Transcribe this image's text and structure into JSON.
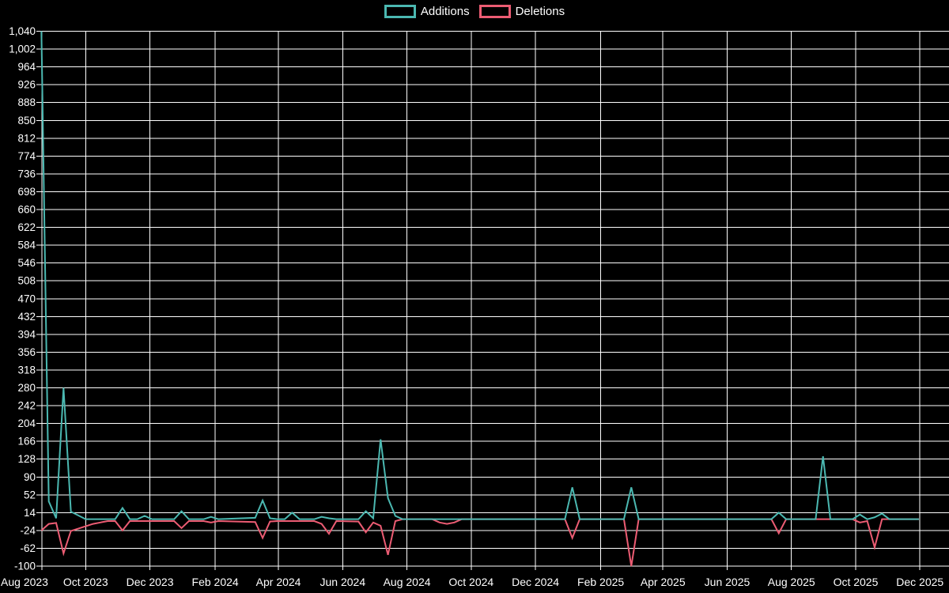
{
  "page": {
    "background_color": "#000000",
    "text_color": "#ffffff",
    "grid_color": "#ffffff"
  },
  "chart_data": {
    "type": "line",
    "title": "",
    "legend_position": "top-center",
    "grid": true,
    "background": "#000000",
    "x_axis": {
      "tick_labels": [
        "Aug 2023",
        "Oct 2023",
        "Dec 2023",
        "Feb 2024",
        "Apr 2024",
        "Jun 2024",
        "Aug 2024",
        "Oct 2024",
        "Dec 2024",
        "Feb 2025",
        "Apr 2025",
        "Jun 2025",
        "Aug 2025",
        "Oct 2025",
        "Dec 2025"
      ]
    },
    "y_axis": {
      "min": -100,
      "max": 1040,
      "tick_step": 38,
      "tick_labels": [
        "1,040",
        "1,002",
        "964",
        "926",
        "888",
        "850",
        "812",
        "774",
        "736",
        "698",
        "660",
        "622",
        "584",
        "546",
        "508",
        "470",
        "432",
        "394",
        "356",
        "318",
        "280",
        "242",
        "204",
        "166",
        "128",
        "90",
        "52",
        "14",
        "-24",
        "-62",
        "-100"
      ]
    },
    "series": [
      {
        "name": "Additions",
        "color": "#4bb8b1"
      },
      {
        "name": "Deletions",
        "color": "#ec5c73"
      }
    ],
    "points_format": [
      "week_start_date",
      "additions",
      "deletions"
    ],
    "points": [
      [
        "2023-08-20",
        1040,
        -24
      ],
      [
        "2023-08-27",
        38,
        -10
      ],
      [
        "2023-09-03",
        2,
        -8
      ],
      [
        "2023-09-10",
        280,
        -73
      ],
      [
        "2023-09-17",
        16,
        -25
      ],
      [
        "2023-09-24",
        8,
        -20
      ],
      [
        "2023-10-01",
        0,
        -15
      ],
      [
        "2023-10-08",
        0,
        -10
      ],
      [
        "2023-10-15",
        0,
        -7
      ],
      [
        "2023-10-22",
        0,
        -4
      ],
      [
        "2023-10-29",
        0,
        -4
      ],
      [
        "2023-11-05",
        24,
        -24
      ],
      [
        "2023-11-12",
        0,
        -4
      ],
      [
        "2023-11-19",
        0,
        -4
      ],
      [
        "2023-11-26",
        7,
        -4
      ],
      [
        "2023-12-03",
        0,
        -4
      ],
      [
        "2023-12-24",
        0,
        -4
      ],
      [
        "2023-12-31",
        17,
        -19
      ],
      [
        "2024-01-07",
        0,
        -4
      ],
      [
        "2024-01-21",
        0,
        -4
      ],
      [
        "2024-01-28",
        5,
        -7
      ],
      [
        "2024-02-04",
        0,
        -4
      ],
      [
        "2024-03-10",
        3,
        -6
      ],
      [
        "2024-03-17",
        40,
        -40
      ],
      [
        "2024-03-24",
        2,
        -5
      ],
      [
        "2024-03-31",
        0,
        -4
      ],
      [
        "2024-04-07",
        0,
        -4
      ],
      [
        "2024-04-14",
        14,
        -4
      ],
      [
        "2024-04-21",
        0,
        -4
      ],
      [
        "2024-05-05",
        0,
        -4
      ],
      [
        "2024-05-12",
        5,
        -10
      ],
      [
        "2024-05-19",
        2,
        -31
      ],
      [
        "2024-05-26",
        0,
        -4
      ],
      [
        "2024-06-16",
        0,
        -5
      ],
      [
        "2024-06-23",
        17,
        -28
      ],
      [
        "2024-06-30",
        2,
        -7
      ],
      [
        "2024-07-07",
        170,
        -14
      ],
      [
        "2024-07-14",
        45,
        -76
      ],
      [
        "2024-07-21",
        7,
        -4
      ],
      [
        "2024-07-28",
        0,
        0
      ],
      [
        "2024-08-25",
        0,
        0
      ],
      [
        "2024-09-01",
        0,
        -7
      ],
      [
        "2024-09-08",
        0,
        -10
      ],
      [
        "2024-09-15",
        0,
        -7
      ],
      [
        "2024-09-22",
        0,
        0
      ],
      [
        "2024-12-29",
        0,
        0
      ],
      [
        "2025-01-05",
        68,
        -40
      ],
      [
        "2025-01-12",
        0,
        0
      ],
      [
        "2025-02-23",
        0,
        0
      ],
      [
        "2025-03-02",
        68,
        -100
      ],
      [
        "2025-03-09",
        0,
        0
      ],
      [
        "2025-07-13",
        0,
        0
      ],
      [
        "2025-07-20",
        14,
        -30
      ],
      [
        "2025-07-27",
        0,
        0
      ],
      [
        "2025-08-24",
        0,
        0
      ],
      [
        "2025-08-31",
        134,
        0
      ],
      [
        "2025-09-07",
        0,
        0
      ],
      [
        "2025-09-28",
        0,
        0
      ],
      [
        "2025-10-05",
        10,
        -7
      ],
      [
        "2025-10-12",
        0,
        -4
      ],
      [
        "2025-10-19",
        4,
        -60
      ],
      [
        "2025-10-26",
        12,
        0
      ],
      [
        "2025-11-02",
        0,
        0
      ],
      [
        "2025-11-30",
        0,
        0
      ]
    ]
  }
}
